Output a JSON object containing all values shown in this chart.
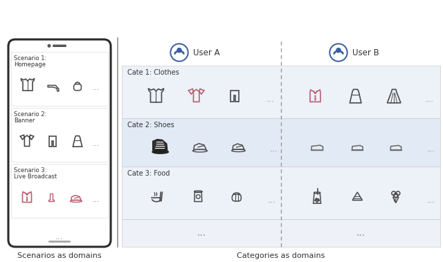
{
  "fig_width": 6.4,
  "fig_height": 3.79,
  "dpi": 100,
  "bg_color": "#ffffff",
  "phone_border": "#2a2a2a",
  "phone_bg": "#ffffff",
  "row_bg_light": "#edf1f8",
  "row_bg_mid": "#e2eaf5",
  "row_bg_white": "#ffffff",
  "separator_color": "#999999",
  "user_icon_color": "#3a5fa0",
  "icon_dark": "#4a4a4a",
  "icon_pink": "#b86070",
  "icon_gray": "#666666",
  "dots_color": "#888888",
  "label_color": "#333333",
  "title_color": "#333333",
  "title_text": "Scenarios as domains",
  "title_text2": "Categories as domains",
  "user_a": "User A",
  "user_b": "User B",
  "scenario_labels": [
    "Scenario 1:\nHomepage",
    "Scenario 2:\nBanner",
    "Scenario 3:\nLive Broadcast"
  ],
  "cate_labels": [
    "Cate 1: Clothes",
    "Cate 2: Shoes",
    "Cate 3: Food"
  ],
  "font_size_label": 7,
  "font_size_scenario": 6,
  "font_size_title": 8,
  "font_size_user": 8.5,
  "font_size_dots": 9
}
